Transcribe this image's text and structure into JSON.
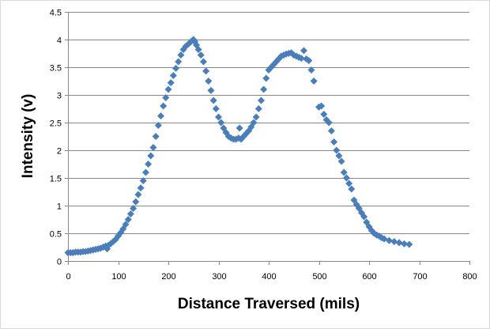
{
  "chart_data": {
    "type": "scatter",
    "title": "",
    "xlabel": "Distance Traversed (mils)",
    "ylabel": "Intensity (v)",
    "xlim": [
      0,
      800
    ],
    "ylim": [
      0,
      4.5
    ],
    "xticks": [
      0,
      100,
      200,
      300,
      400,
      500,
      600,
      700,
      800
    ],
    "yticks": [
      0,
      0.5,
      1,
      1.5,
      2,
      2.5,
      3,
      3.5,
      4,
      4.5
    ],
    "ytick_labels": [
      "0",
      "0.5",
      "1",
      "1.5",
      "2",
      "2.5",
      "3",
      "3.5",
      "4",
      "4.5"
    ],
    "grid": "horizontal",
    "legend": "none",
    "marker_color": "#4a7ebb",
    "series": [
      {
        "name": "Intensity",
        "x": [
          0,
          5,
          10,
          15,
          20,
          25,
          30,
          35,
          40,
          45,
          50,
          55,
          60,
          65,
          70,
          75,
          78,
          80,
          85,
          90,
          95,
          100,
          105,
          110,
          115,
          120,
          125,
          130,
          135,
          140,
          145,
          150,
          155,
          160,
          165,
          170,
          175,
          180,
          185,
          190,
          195,
          200,
          205,
          210,
          215,
          220,
          225,
          230,
          235,
          240,
          245,
          250,
          253,
          256,
          260,
          265,
          270,
          275,
          280,
          285,
          290,
          295,
          300,
          305,
          310,
          315,
          320,
          325,
          330,
          335,
          340,
          342,
          345,
          350,
          355,
          360,
          365,
          370,
          375,
          380,
          385,
          390,
          395,
          400,
          405,
          410,
          415,
          420,
          425,
          430,
          435,
          440,
          445,
          450,
          455,
          460,
          465,
          470,
          475,
          480,
          485,
          490,
          500,
          505,
          510,
          515,
          520,
          525,
          530,
          535,
          540,
          545,
          550,
          555,
          560,
          565,
          570,
          575,
          580,
          585,
          590,
          595,
          600,
          605,
          610,
          615,
          620,
          625,
          630,
          640,
          650,
          660,
          670,
          680
        ],
        "y": [
          0.15,
          0.15,
          0.15,
          0.16,
          0.16,
          0.16,
          0.17,
          0.17,
          0.18,
          0.19,
          0.2,
          0.21,
          0.22,
          0.23,
          0.25,
          0.27,
          0.22,
          0.28,
          0.31,
          0.35,
          0.39,
          0.45,
          0.51,
          0.58,
          0.66,
          0.75,
          0.85,
          0.95,
          1.07,
          1.2,
          1.32,
          1.45,
          1.6,
          1.75,
          1.9,
          2.05,
          2.25,
          2.45,
          2.62,
          2.8,
          2.95,
          3.1,
          3.22,
          3.35,
          3.48,
          3.6,
          3.72,
          3.82,
          3.88,
          3.92,
          3.96,
          4.0,
          3.96,
          3.9,
          3.82,
          3.72,
          3.6,
          3.43,
          3.25,
          3.08,
          2.9,
          2.75,
          2.6,
          2.5,
          2.4,
          2.32,
          2.25,
          2.22,
          2.2,
          2.2,
          2.22,
          2.4,
          2.2,
          2.25,
          2.3,
          2.35,
          2.42,
          2.5,
          2.6,
          2.75,
          2.9,
          3.1,
          3.3,
          3.45,
          3.5,
          3.55,
          3.6,
          3.65,
          3.7,
          3.72,
          3.74,
          3.75,
          3.76,
          3.72,
          3.7,
          3.68,
          3.66,
          3.8,
          3.65,
          3.62,
          3.45,
          3.25,
          2.78,
          2.8,
          2.65,
          2.55,
          2.5,
          2.35,
          2.15,
          2.0,
          1.9,
          1.8,
          1.6,
          1.5,
          1.4,
          1.3,
          1.1,
          1.02,
          0.95,
          0.87,
          0.8,
          0.7,
          0.62,
          0.55,
          0.5,
          0.47,
          0.45,
          0.42,
          0.4,
          0.37,
          0.35,
          0.33,
          0.31,
          0.3
        ]
      }
    ]
  }
}
